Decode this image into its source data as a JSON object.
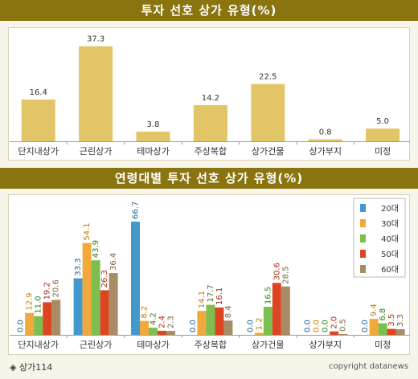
{
  "source": "◈ 상가114",
  "copyright": "copyright datanews",
  "colors": {
    "banner": "#8a7410",
    "single_bar": "#e2c566",
    "axis": "#999999"
  },
  "chart_data": [
    {
      "type": "bar",
      "title": "투자 선호 상가 유형(%)",
      "categories": [
        "단지내상가",
        "근린상가",
        "테마상가",
        "주상복합",
        "상가건물",
        "상가부지",
        "미정"
      ],
      "values": [
        16.4,
        37.3,
        3.8,
        14.2,
        22.5,
        0.8,
        5.0
      ],
      "value_labels": [
        "16.4",
        "37.3",
        "3.8",
        "14.2",
        "22.5",
        "0.8",
        "5.0"
      ],
      "xlabel": "",
      "ylabel": "",
      "ylim": [
        0,
        40
      ],
      "grid": false
    },
    {
      "type": "bar",
      "title": "연령대별 투자 선호 상가 유형(%)",
      "categories": [
        "단지내상가",
        "근린상가",
        "테마상가",
        "주상복합",
        "상가건물",
        "상가부지",
        "미정"
      ],
      "series": [
        {
          "name": "20대",
          "color": "#4499cc",
          "values": [
            0.0,
            33.3,
            66.7,
            0.0,
            0.0,
            0.0,
            0.0
          ]
        },
        {
          "name": "30대",
          "color": "#f2a93b",
          "values": [
            12.9,
            54.1,
            8.2,
            14.1,
            1.2,
            0.0,
            9.4
          ]
        },
        {
          "name": "40대",
          "color": "#7cbf4e",
          "values": [
            11.0,
            43.9,
            4.2,
            17.7,
            16.5,
            0.0,
            6.8
          ]
        },
        {
          "name": "50대",
          "color": "#dd4422",
          "values": [
            19.2,
            26.3,
            2.4,
            16.1,
            30.6,
            2.0,
            3.5
          ]
        },
        {
          "name": "60대",
          "color": "#a88c66",
          "values": [
            20.6,
            36.4,
            2.3,
            8.4,
            28.5,
            0.5,
            3.3
          ]
        }
      ],
      "xlabel": "",
      "ylabel": "",
      "ylim": [
        0,
        70
      ],
      "legend": "top-right",
      "grid": false
    }
  ]
}
